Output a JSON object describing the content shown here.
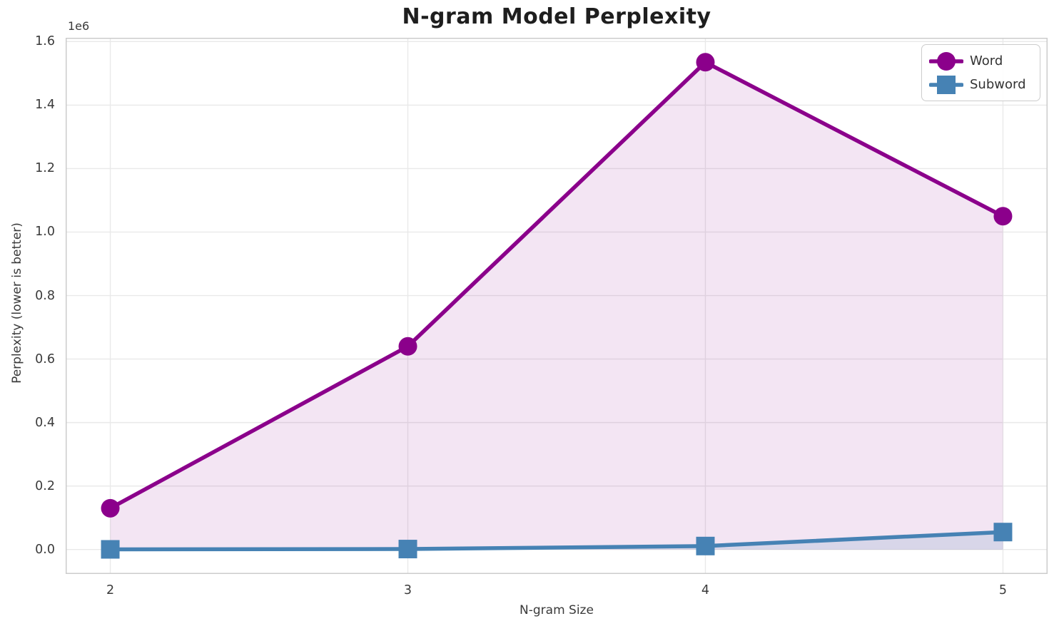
{
  "chart_data": {
    "type": "line",
    "title": "N-gram Model Perplexity",
    "xlabel": "N-gram Size",
    "ylabel": "Perplexity (lower is better)",
    "y_offset_label": "1e6",
    "x": [
      2,
      3,
      4,
      5
    ],
    "series": [
      {
        "name": "Word",
        "values": [
          130000,
          640000,
          1535000,
          1050000
        ],
        "color": "#8B008B",
        "marker": "circle",
        "fill_to_zero": true,
        "fill_opacity": 0.1
      },
      {
        "name": "Subword",
        "values": [
          500,
          1500,
          11000,
          55000
        ],
        "color": "#4682B4",
        "marker": "square",
        "fill_to_zero": true,
        "fill_opacity": 0.15
      }
    ],
    "xlim": [
      1.85,
      5.15
    ],
    "ylim": [
      -77000,
      1612000
    ],
    "xticks": {
      "values": [
        2,
        3,
        4,
        5
      ],
      "labels": [
        "2",
        "3",
        "4",
        "5"
      ]
    },
    "yticks": {
      "values": [
        0,
        200000,
        400000,
        600000,
        800000,
        1000000,
        1200000,
        1400000,
        1600000
      ],
      "labels": [
        "0.0",
        "0.2",
        "0.4",
        "0.6",
        "0.8",
        "1.0",
        "1.2",
        "1.4",
        "1.6"
      ]
    },
    "grid": true,
    "legend_position": "upper right",
    "colors": {
      "grid": "#e9e9e9",
      "spine": "#cccccc",
      "text": "#3a3a3a",
      "title": "#1e1e1e",
      "background": "#ffffff"
    }
  }
}
